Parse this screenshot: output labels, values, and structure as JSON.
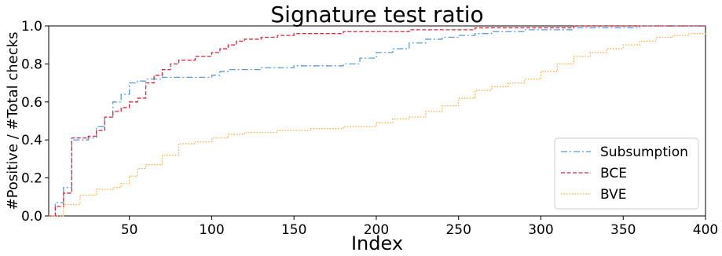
{
  "chart_data": {
    "type": "line",
    "title": "Signature test ratio",
    "xlabel": "Index",
    "ylabel": "#Positive / #Total checks",
    "xlim": [
      1,
      400
    ],
    "ylim": [
      0.0,
      1.0
    ],
    "x_ticks": [
      50,
      100,
      150,
      200,
      250,
      300,
      350,
      400
    ],
    "x_tick_labels": [
      "50",
      "100",
      "150",
      "200",
      "250",
      "300",
      "350",
      "400"
    ],
    "y_ticks": [
      0.0,
      0.2,
      0.4,
      0.6,
      0.8,
      1.0
    ],
    "y_tick_labels": [
      "0.0",
      "0.2",
      "0.4",
      "0.6",
      "0.8",
      "1.0"
    ],
    "grid": false,
    "legend_position": "lower-right",
    "series": [
      {
        "name": "Subsumption",
        "color": "#5b9bd5",
        "dash": "dashdot",
        "x": [
          1,
          5,
          10,
          15,
          20,
          25,
          30,
          35,
          40,
          45,
          50,
          55,
          60,
          70,
          80,
          90,
          100,
          105,
          110,
          130,
          150,
          170,
          180,
          190,
          200,
          210,
          220,
          230,
          240,
          250,
          260,
          270,
          280,
          290,
          300,
          320,
          340,
          350,
          360,
          380,
          400
        ],
        "y": [
          0.0,
          0.07,
          0.15,
          0.4,
          0.4,
          0.41,
          0.47,
          0.52,
          0.6,
          0.64,
          0.7,
          0.71,
          0.72,
          0.73,
          0.73,
          0.73,
          0.74,
          0.76,
          0.77,
          0.78,
          0.79,
          0.79,
          0.8,
          0.83,
          0.86,
          0.88,
          0.91,
          0.93,
          0.94,
          0.95,
          0.96,
          0.97,
          0.97,
          0.98,
          0.98,
          0.99,
          0.99,
          0.99,
          1.0,
          1.0,
          1.0
        ]
      },
      {
        "name": "BCE",
        "color": "#d62740",
        "dash": "dashed",
        "x": [
          1,
          5,
          10,
          15,
          20,
          25,
          30,
          35,
          40,
          45,
          50,
          55,
          60,
          65,
          70,
          75,
          80,
          90,
          100,
          105,
          110,
          115,
          120,
          130,
          140,
          150,
          160,
          180,
          200,
          220,
          240,
          260,
          280,
          300,
          320,
          350,
          400
        ],
        "y": [
          0.0,
          0.05,
          0.12,
          0.41,
          0.41,
          0.42,
          0.45,
          0.52,
          0.55,
          0.57,
          0.6,
          0.62,
          0.7,
          0.74,
          0.77,
          0.8,
          0.82,
          0.84,
          0.86,
          0.88,
          0.9,
          0.92,
          0.93,
          0.94,
          0.95,
          0.96,
          0.96,
          0.97,
          0.97,
          0.98,
          0.98,
          0.99,
          0.99,
          0.99,
          1.0,
          1.0,
          1.0
        ]
      },
      {
        "name": "BVE",
        "color": "#ffa93a",
        "dash": "dotted",
        "x": [
          1,
          10,
          20,
          30,
          40,
          45,
          50,
          55,
          60,
          70,
          80,
          90,
          100,
          110,
          120,
          140,
          160,
          180,
          200,
          210,
          220,
          230,
          240,
          250,
          260,
          270,
          280,
          290,
          300,
          310,
          320,
          330,
          340,
          350,
          360,
          370,
          380,
          390,
          400
        ],
        "y": [
          0.0,
          0.06,
          0.11,
          0.14,
          0.15,
          0.17,
          0.21,
          0.25,
          0.27,
          0.32,
          0.38,
          0.39,
          0.41,
          0.43,
          0.44,
          0.45,
          0.46,
          0.47,
          0.49,
          0.51,
          0.52,
          0.55,
          0.58,
          0.62,
          0.66,
          0.68,
          0.7,
          0.72,
          0.76,
          0.8,
          0.84,
          0.86,
          0.88,
          0.9,
          0.92,
          0.94,
          0.95,
          0.96,
          0.97
        ]
      }
    ]
  }
}
